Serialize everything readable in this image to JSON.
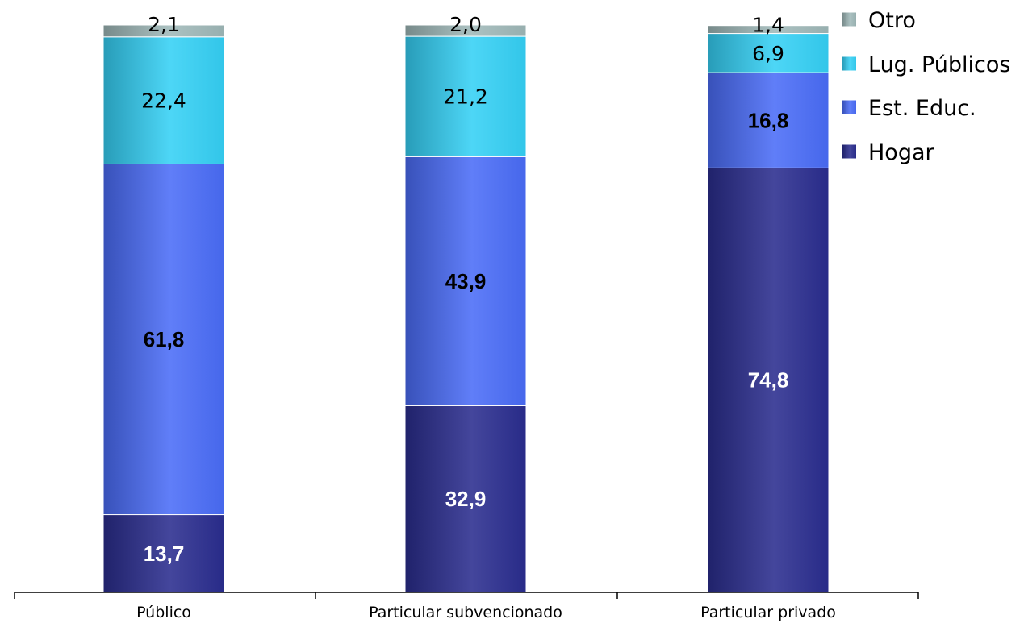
{
  "chart_data": {
    "type": "bar",
    "stacked": true,
    "percent_stacked": true,
    "categories": [
      "Público",
      "Particular subvencionado",
      "Particular privado"
    ],
    "series": [
      {
        "name": "Hogar",
        "values": [
          13.7,
          32.9,
          74.8
        ],
        "labels": [
          "13,7",
          "32,9",
          "74,8"
        ],
        "color": "#2a2d8f"
      },
      {
        "name": "Est. Educ.",
        "values": [
          61.8,
          43.9,
          16.8
        ],
        "labels": [
          "61,8",
          "43,9",
          "16,8"
        ],
        "color": "#4a6cf7"
      },
      {
        "name": "Lug. Públicos",
        "values": [
          22.4,
          21.2,
          6.9
        ],
        "labels": [
          "22,4",
          "21,2",
          "6,9"
        ],
        "color": "#35d0f5"
      },
      {
        "name": "Otro",
        "values": [
          2.1,
          2.0,
          1.4
        ],
        "labels": [
          "2,1",
          "2,0",
          "1,4"
        ],
        "color": "#9fb8b8"
      }
    ],
    "legend": {
      "position": "top-right",
      "order": [
        "Otro",
        "Lug. Públicos",
        "Est. Educ.",
        "Hogar"
      ]
    },
    "ylim": [
      0,
      100
    ],
    "grid": false,
    "title": "",
    "xlabel": "",
    "ylabel": ""
  }
}
